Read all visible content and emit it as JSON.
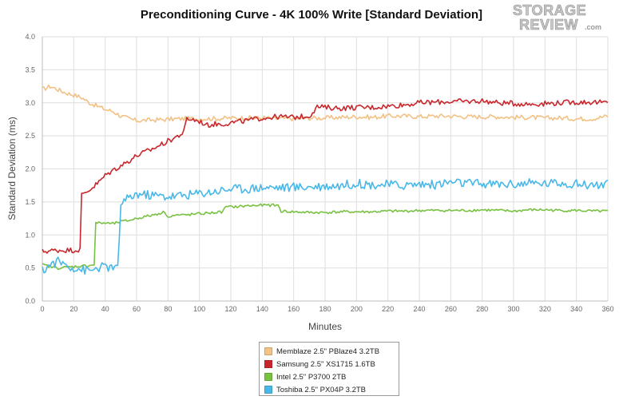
{
  "logo": {
    "line1": "STORAGE",
    "line2": "REVIEW",
    "suffix": ".com"
  },
  "chart_data": {
    "type": "line",
    "title": "Preconditioning Curve - 4K 100% Write [Standard Deviation]",
    "xlabel": "Minutes",
    "ylabel": "Standard Deviation (ms)",
    "xlim": [
      0,
      360
    ],
    "ylim": [
      0,
      4.0
    ],
    "x_ticks": [
      0,
      20,
      40,
      60,
      80,
      100,
      120,
      140,
      160,
      180,
      200,
      220,
      240,
      260,
      280,
      300,
      320,
      340,
      360
    ],
    "y_ticks": [
      "0.0",
      "0.5",
      "1.0",
      "1.5",
      "2.0",
      "2.5",
      "3.0",
      "3.5",
      "4.0"
    ],
    "grid": true,
    "legend_position": "bottom-center",
    "series": [
      {
        "name": "Memblaze 2.5\" PBlaze4 3.2TB",
        "color": "#f2c185",
        "x": [
          0,
          5,
          10,
          15,
          20,
          25,
          30,
          35,
          40,
          45,
          50,
          55,
          60,
          70,
          80,
          90,
          100,
          110,
          120,
          130,
          140,
          150,
          160,
          170,
          180,
          190,
          200,
          210,
          220,
          230,
          240,
          250,
          260,
          270,
          280,
          290,
          300,
          310,
          320,
          330,
          340,
          350,
          360
        ],
        "y": [
          3.2,
          3.25,
          3.2,
          3.15,
          3.12,
          3.08,
          3.0,
          2.95,
          2.9,
          2.87,
          2.8,
          2.76,
          2.73,
          2.74,
          2.75,
          2.76,
          2.76,
          2.76,
          2.77,
          2.77,
          2.77,
          2.76,
          2.76,
          2.77,
          2.77,
          2.78,
          2.79,
          2.78,
          2.8,
          2.8,
          2.79,
          2.8,
          2.8,
          2.79,
          2.79,
          2.79,
          2.78,
          2.78,
          2.77,
          2.77,
          2.76,
          2.76,
          2.8
        ]
      },
      {
        "name": "Samsung 2.5\" XS1715 1.6TB",
        "color": "#c8282d",
        "x": [
          0,
          5,
          10,
          15,
          20,
          24,
          25,
          28,
          32,
          36,
          40,
          45,
          50,
          55,
          60,
          65,
          70,
          75,
          80,
          85,
          90,
          92,
          95,
          100,
          105,
          110,
          115,
          120,
          130,
          140,
          150,
          160,
          170,
          175,
          180,
          190,
          200,
          210,
          220,
          230,
          240,
          250,
          260,
          270,
          280,
          290,
          300,
          310,
          320,
          330,
          340,
          350,
          360
        ],
        "y": [
          0.75,
          0.76,
          0.77,
          0.77,
          0.77,
          0.78,
          1.6,
          1.65,
          1.72,
          1.8,
          1.9,
          1.98,
          2.05,
          2.12,
          2.2,
          2.25,
          2.3,
          2.36,
          2.42,
          2.48,
          2.55,
          2.76,
          2.75,
          2.72,
          2.66,
          2.68,
          2.68,
          2.7,
          2.73,
          2.77,
          2.79,
          2.78,
          2.8,
          2.94,
          2.93,
          2.92,
          2.93,
          2.93,
          2.95,
          2.97,
          3.0,
          3.01,
          3.02,
          3.02,
          3.03,
          3.0,
          2.99,
          2.98,
          2.99,
          3.0,
          3.01,
          3.01,
          3.0
        ]
      },
      {
        "name": "Intel 2.5\" P3700 2TB",
        "color": "#79c142",
        "x": [
          0,
          5,
          10,
          15,
          20,
          25,
          30,
          33,
          34,
          40,
          45,
          50,
          55,
          60,
          70,
          78,
          79,
          85,
          90,
          100,
          110,
          115,
          116,
          125,
          130,
          140,
          150,
          152,
          160,
          170,
          180,
          190,
          200,
          210,
          220,
          230,
          240,
          250,
          260,
          270,
          280,
          290,
          300,
          310,
          320,
          330,
          340,
          350,
          360
        ],
        "y": [
          0.55,
          0.52,
          0.5,
          0.51,
          0.52,
          0.53,
          0.54,
          0.55,
          1.18,
          1.18,
          1.17,
          1.2,
          1.22,
          1.25,
          1.3,
          1.35,
          1.28,
          1.3,
          1.3,
          1.32,
          1.34,
          1.35,
          1.42,
          1.43,
          1.44,
          1.45,
          1.45,
          1.36,
          1.35,
          1.34,
          1.34,
          1.35,
          1.35,
          1.35,
          1.36,
          1.36,
          1.37,
          1.37,
          1.37,
          1.37,
          1.38,
          1.37,
          1.36,
          1.38,
          1.38,
          1.37,
          1.37,
          1.36,
          1.36
        ]
      },
      {
        "name": "Toshiba 2.5\" PX04P 3.2TB",
        "color": "#48b8e8",
        "x": [
          0,
          5,
          10,
          15,
          20,
          25,
          30,
          35,
          40,
          45,
          48,
          50,
          55,
          60,
          70,
          80,
          90,
          100,
          110,
          120,
          130,
          140,
          150,
          160,
          170,
          180,
          190,
          200,
          210,
          220,
          230,
          240,
          250,
          260,
          270,
          280,
          290,
          300,
          310,
          320,
          330,
          340,
          350,
          360
        ],
        "y": [
          0.45,
          0.55,
          0.6,
          0.55,
          0.5,
          0.48,
          0.45,
          0.5,
          0.52,
          0.5,
          0.48,
          1.48,
          1.55,
          1.62,
          1.6,
          1.58,
          1.6,
          1.63,
          1.66,
          1.7,
          1.7,
          1.72,
          1.72,
          1.72,
          1.73,
          1.74,
          1.75,
          1.78,
          1.76,
          1.76,
          1.75,
          1.77,
          1.76,
          1.8,
          1.78,
          1.77,
          1.77,
          1.77,
          1.78,
          1.78,
          1.79,
          1.77,
          1.76,
          1.76
        ]
      }
    ]
  }
}
